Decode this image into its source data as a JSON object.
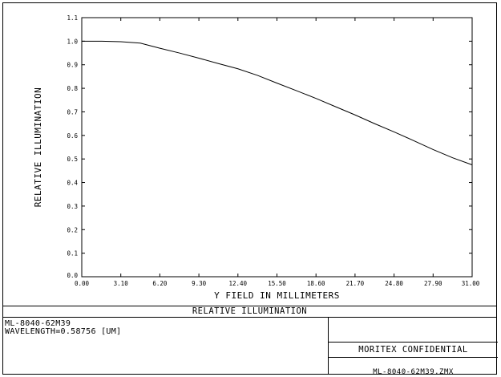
{
  "chart_data": {
    "type": "line",
    "title": "RELATIVE ILLUMINATION",
    "xlabel": "Y FIELD IN MILLIMETERS",
    "ylabel": "RELATIVE ILLUMINATION",
    "xlim": [
      0,
      31
    ],
    "ylim": [
      0,
      1.1
    ],
    "xticks": [
      "0.00",
      "3.10",
      "6.20",
      "9.30",
      "12.40",
      "15.50",
      "18.60",
      "21.70",
      "24.80",
      "27.90",
      "31.00"
    ],
    "yticks": [
      "0.0",
      "0.1",
      "0.2",
      "0.3",
      "0.4",
      "0.5",
      "0.6",
      "0.7",
      "0.8",
      "0.9",
      "1.0",
      "1.1"
    ],
    "grid": false,
    "series": [
      {
        "x": [
          0,
          1.55,
          3.1,
          4.65,
          6.2,
          7.75,
          9.3,
          10.85,
          12.4,
          13.95,
          15.5,
          17.05,
          18.6,
          20.15,
          21.7,
          23.25,
          24.8,
          26.35,
          27.9,
          29.45,
          31.0
        ],
        "values": [
          1.0,
          1.0,
          0.998,
          0.992,
          0.97,
          0.95,
          0.928,
          0.905,
          0.883,
          0.855,
          0.822,
          0.79,
          0.757,
          0.722,
          0.687,
          0.65,
          0.615,
          0.578,
          0.54,
          0.505,
          0.475
        ]
      }
    ]
  },
  "info": {
    "lens_id": "ML-8040-62M39",
    "wavelength": "WAVELENGTH=0.58756 [UM]",
    "confidential": "MORITEX CONFIDENTIAL",
    "filename": "ML-8040-62M39.ZMX"
  }
}
